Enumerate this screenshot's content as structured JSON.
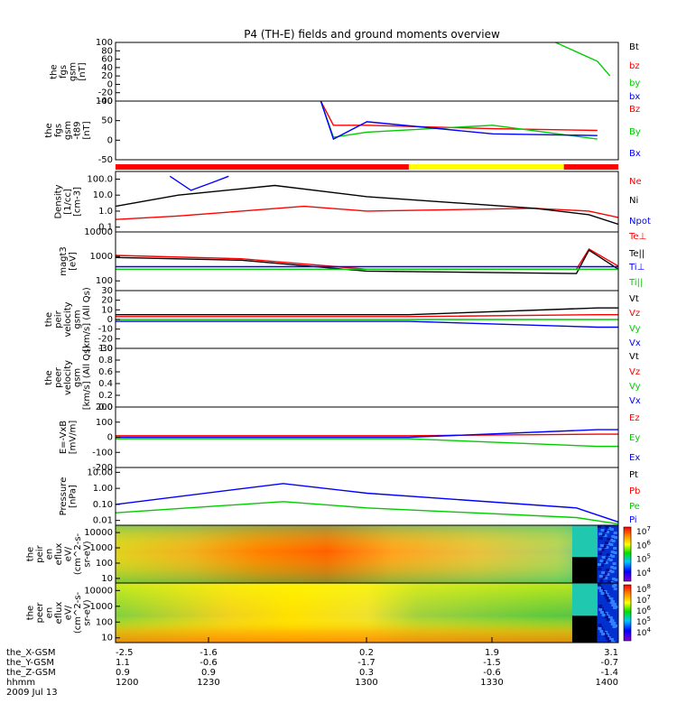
{
  "title": "P4 (TH-E) fields and ground moments overview",
  "time_axis": {
    "start": "1200",
    "end": "1400",
    "date": "2009 Jul 13",
    "rows": [
      {
        "label": "the_X-GSM",
        "values": [
          "-2.5",
          "-1.6",
          "0.2",
          "1.9",
          "3.1"
        ]
      },
      {
        "label": "the_Y-GSM",
        "values": [
          "1.1",
          "-0.6",
          "-1.7",
          "-1.5",
          "-0.7"
        ]
      },
      {
        "label": "the_Z-GSM",
        "values": [
          "0.9",
          "0.9",
          "0.3",
          "-0.6",
          "-1.4"
        ]
      },
      {
        "label": "hhmm",
        "values": [
          "1200",
          "1230",
          "1300",
          "1330",
          "1400"
        ]
      }
    ]
  },
  "mode_bar": {
    "segments": [
      {
        "from": "1200",
        "to": "1310",
        "color": "#ff0000"
      },
      {
        "from": "1310",
        "to": "1347",
        "color": "#ffff00"
      },
      {
        "from": "1347",
        "to": "1400",
        "color": "#ff0000"
      }
    ]
  },
  "chart_data": [
    {
      "type": "line",
      "ylabel": [
        "the",
        "fgs",
        "gsm",
        "[nT]"
      ],
      "ylim": [
        -40,
        100
      ],
      "yticks": [
        "100",
        "80",
        "60",
        "40",
        "20",
        "0",
        "-20",
        "-40"
      ],
      "series": [
        {
          "name": "Bt",
          "color": "#000000"
        },
        {
          "name": "bz",
          "color": "#ff0000"
        },
        {
          "name": "by",
          "color": "#00cc00",
          "x": [
            "1345",
            "1355",
            "1358"
          ],
          "values": [
            100,
            55,
            20
          ]
        },
        {
          "name": "bx",
          "color": "#0000ff"
        }
      ]
    },
    {
      "type": "line",
      "ylabel": [
        "the",
        "fgs",
        "gsm",
        "-t89",
        "[nT]"
      ],
      "ylim": [
        -70,
        100
      ],
      "yticks": [
        "100",
        "50",
        "0",
        "-50"
      ],
      "series": [
        {
          "name": "Bz",
          "color": "#ff0000",
          "x": [
            "1249",
            "1252",
            "1300",
            "1330",
            "1355"
          ],
          "values": [
            100,
            30,
            30,
            20,
            15
          ]
        },
        {
          "name": "By",
          "color": "#00cc00",
          "x": [
            "1249",
            "1252",
            "1300",
            "1330",
            "1355"
          ],
          "values": [
            100,
            -5,
            10,
            30,
            -10
          ]
        },
        {
          "name": "Bx",
          "color": "#0000ff",
          "x": [
            "1249",
            "1252",
            "1300",
            "1330",
            "1355"
          ],
          "values": [
            100,
            -10,
            40,
            5,
            0
          ]
        }
      ]
    },
    {
      "type": "line",
      "ylabel": [
        "Density",
        "[1/cc]",
        "[cm-3]"
      ],
      "ylim": [
        0.05,
        300
      ],
      "log": true,
      "yticks": [
        "100.0",
        "10.0",
        "1.0",
        "0.1"
      ],
      "series": [
        {
          "name": "Ne",
          "color": "#ff0000",
          "x": [
            "1200",
            "1215",
            "1245",
            "1300",
            "1340",
            "1353",
            "1400"
          ],
          "values": [
            0.3,
            0.5,
            2,
            1,
            1.5,
            1,
            0.4
          ]
        },
        {
          "name": "Ni",
          "color": "#000000",
          "x": [
            "1200",
            "1215",
            "1238",
            "1300",
            "1340",
            "1353",
            "1400"
          ],
          "values": [
            2,
            10,
            40,
            8,
            1.5,
            0.6,
            0.15
          ]
        },
        {
          "name": "Npot",
          "color": "#0000ff",
          "x": [
            "1213",
            "1218",
            "1223",
            "1227"
          ],
          "values": [
            150,
            20,
            60,
            150
          ]
        }
      ]
    },
    {
      "type": "line",
      "ylabel": [
        "magt3",
        "[eV]"
      ],
      "ylim": [
        40,
        10000
      ],
      "log": true,
      "yticks": [
        "10000",
        "1000",
        "100"
      ],
      "series": [
        {
          "name": "Te⊥",
          "color": "#ff0000",
          "x": [
            "1200",
            "1230",
            "1300",
            "1350",
            "1353",
            "1400"
          ],
          "values": [
            1100,
            800,
            300,
            300,
            2000,
            400
          ]
        },
        {
          "name": "Te||",
          "color": "#000000",
          "x": [
            "1200",
            "1230",
            "1300",
            "1350",
            "1353",
            "1400"
          ],
          "values": [
            900,
            700,
            250,
            200,
            1800,
            300
          ]
        },
        {
          "name": "Ti⊥",
          "color": "#0000ff",
          "x": [
            "1200",
            "1400"
          ],
          "values": [
            380,
            380
          ]
        },
        {
          "name": "Ti||",
          "color": "#00cc00",
          "x": [
            "1200",
            "1400"
          ],
          "values": [
            300,
            300
          ]
        }
      ]
    },
    {
      "type": "line",
      "ylabel": [
        "the",
        "peir",
        "velocity",
        "gsm",
        "[km/s] (All Qs)"
      ],
      "ylim": [
        -30,
        30
      ],
      "yticks": [
        "30",
        "20",
        "10",
        "0",
        "-10",
        "-20",
        "-30"
      ],
      "series": [
        {
          "name": "Vt",
          "color": "#000000",
          "x": [
            "1200",
            "1310",
            "1355",
            "1400"
          ],
          "values": [
            5,
            5,
            12,
            12
          ]
        },
        {
          "name": "Vz",
          "color": "#ff0000",
          "x": [
            "1200",
            "1310",
            "1355",
            "1400"
          ],
          "values": [
            3,
            3,
            5,
            5
          ]
        },
        {
          "name": "Vy",
          "color": "#00cc00",
          "x": [
            "1200",
            "1310",
            "1355",
            "1400"
          ],
          "values": [
            0,
            0,
            0,
            0
          ]
        },
        {
          "name": "Vx",
          "color": "#0000ff",
          "x": [
            "1200",
            "1310",
            "1355",
            "1400"
          ],
          "values": [
            -2,
            -2,
            -8,
            -8
          ]
        }
      ]
    },
    {
      "type": "line",
      "ylabel": [
        "the",
        "peer",
        "velocity",
        "gsm",
        "[km/s] (All Qs)"
      ],
      "ylim": [
        0,
        1
      ],
      "yticks": [
        "1.0",
        "0.8",
        "0.6",
        "0.4",
        "0.2",
        "0.0"
      ],
      "series": [
        {
          "name": "Vt",
          "color": "#000000"
        },
        {
          "name": "Vz",
          "color": "#ff0000"
        },
        {
          "name": "Vy",
          "color": "#00cc00"
        },
        {
          "name": "Vx",
          "color": "#0000ff"
        }
      ]
    },
    {
      "type": "line",
      "ylabel": [
        "E=-VxB",
        "[mV/m]"
      ],
      "ylim": [
        -200,
        200
      ],
      "yticks": [
        "200",
        "100",
        "0",
        "-100",
        "-200"
      ],
      "series": [
        {
          "name": "Ez",
          "color": "#ff0000",
          "x": [
            "1200",
            "1310",
            "1355",
            "1400"
          ],
          "values": [
            10,
            10,
            20,
            20
          ]
        },
        {
          "name": "Ey",
          "color": "#00cc00",
          "x": [
            "1200",
            "1310",
            "1355",
            "1400"
          ],
          "values": [
            -10,
            -10,
            -60,
            -60
          ]
        },
        {
          "name": "Ex",
          "color": "#0000ff",
          "x": [
            "1200",
            "1310",
            "1355",
            "1400"
          ],
          "values": [
            0,
            0,
            50,
            50
          ]
        }
      ]
    },
    {
      "type": "line",
      "ylabel": [
        "Pressure",
        "[nPa]"
      ],
      "ylim": [
        0.005,
        20
      ],
      "log": true,
      "yticks": [
        "10.00",
        "1.00",
        "0.10",
        "0.01"
      ],
      "series": [
        {
          "name": "Pt",
          "color": "#000000"
        },
        {
          "name": "Pb",
          "color": "#ff0000"
        },
        {
          "name": "Pe",
          "color": "#00cc00",
          "x": [
            "1200",
            "1240",
            "1300",
            "1350",
            "1400"
          ],
          "values": [
            0.03,
            0.15,
            0.06,
            0.015,
            0.006
          ]
        },
        {
          "name": "Pi",
          "color": "#0000ff",
          "x": [
            "1200",
            "1240",
            "1300",
            "1350",
            "1400"
          ],
          "values": [
            0.1,
            2,
            0.5,
            0.06,
            0.008
          ]
        }
      ]
    },
    {
      "type": "heatmap",
      "ylabel": [
        "the",
        "peir",
        "en",
        "eflux",
        "eV/",
        "(cm^2-s-",
        "sr-eV)"
      ],
      "ylim": [
        5,
        30000
      ],
      "log": true,
      "yticks": [
        "10000",
        "1000",
        "100",
        "10"
      ],
      "colorbar": {
        "ticks": [
          "10^7",
          "10^6",
          "10^5",
          "10^4"
        ]
      }
    },
    {
      "type": "heatmap",
      "ylabel": [
        "the",
        "peer",
        "en",
        "eflux",
        "eV/",
        "(cm^2-s-",
        "sr-eV)"
      ],
      "ylim": [
        5,
        30000
      ],
      "log": true,
      "yticks": [
        "10000",
        "1000",
        "100",
        "10"
      ],
      "colorbar": {
        "ticks": [
          "10^8",
          "10^7",
          "10^6",
          "10^5",
          "10^4"
        ]
      }
    }
  ]
}
